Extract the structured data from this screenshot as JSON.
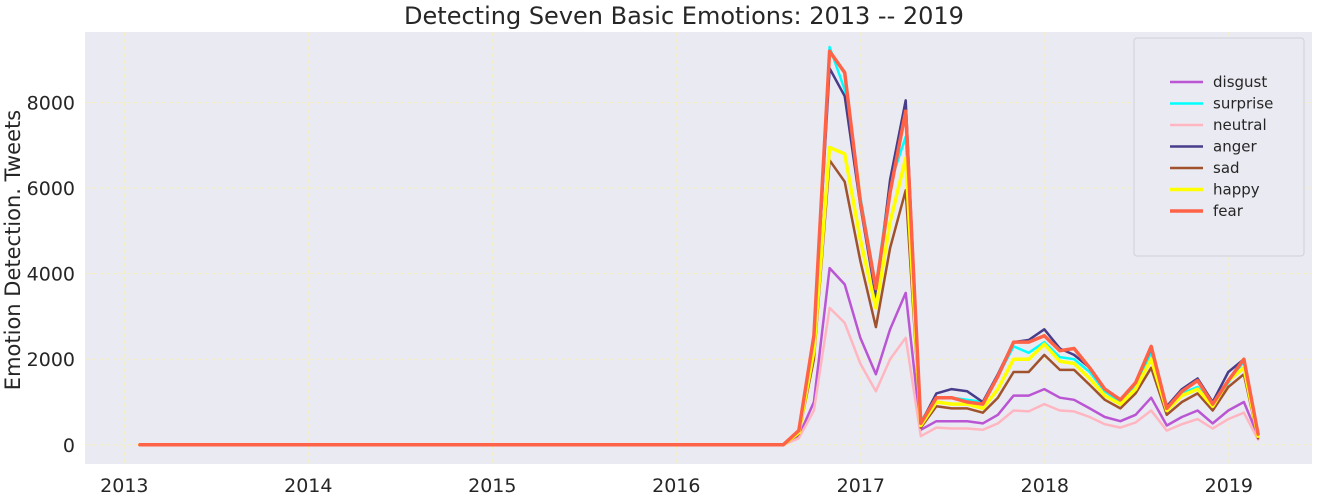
{
  "chart_data": {
    "type": "line",
    "title": "Detecting Seven Basic Emotions: 2013 -- 2019",
    "xlabel": "",
    "ylabel": "Emotion Detection. Tweets",
    "xlim": [
      "2012-10-15",
      "2019-06-15"
    ],
    "ylim": [
      -450,
      9650
    ],
    "x_ticks": [
      {
        "date": "2013-01-01",
        "label": "2013"
      },
      {
        "date": "2014-01-01",
        "label": "2014"
      },
      {
        "date": "2015-01-01",
        "label": "2015"
      },
      {
        "date": "2016-01-01",
        "label": "2016"
      },
      {
        "date": "2017-01-01",
        "label": "2017"
      },
      {
        "date": "2018-01-01",
        "label": "2018"
      },
      {
        "date": "2019-01-01",
        "label": "2019"
      }
    ],
    "y_ticks": [
      {
        "value": 0,
        "label": "0"
      },
      {
        "value": 2000,
        "label": "2000"
      },
      {
        "value": 4000,
        "label": "4000"
      },
      {
        "value": 6000,
        "label": "6000"
      },
      {
        "value": 8000,
        "label": "8000"
      }
    ],
    "grid": true,
    "legend": "upper right",
    "x": [
      "2013-02-01",
      "2016-07-31",
      "2016-08-31",
      "2016-09-30",
      "2016-10-31",
      "2016-11-30",
      "2016-12-31",
      "2017-01-31",
      "2017-02-28",
      "2017-03-31",
      "2017-04-30",
      "2017-05-31",
      "2017-06-30",
      "2017-07-31",
      "2017-08-31",
      "2017-09-30",
      "2017-10-31",
      "2017-11-30",
      "2017-12-31",
      "2018-01-31",
      "2018-02-28",
      "2018-03-31",
      "2018-04-30",
      "2018-05-31",
      "2018-06-30",
      "2018-07-31",
      "2018-08-31",
      "2018-09-30",
      "2018-10-31",
      "2018-11-30",
      "2018-12-31",
      "2019-01-31",
      "2019-02-28"
    ],
    "series": [
      {
        "name": "disgust",
        "color": "#ba55d3",
        "width": 2.5,
        "values": [
          0,
          0,
          200,
          1000,
          4130,
          3750,
          2500,
          1650,
          2700,
          3550,
          350,
          550,
          550,
          550,
          500,
          700,
          1150,
          1150,
          1300,
          1100,
          1050,
          850,
          650,
          550,
          700,
          1100,
          450,
          650,
          800,
          500,
          800,
          1000,
          200
        ]
      },
      {
        "name": "surprise",
        "color": "#00ffff",
        "width": 2.5,
        "values": [
          0,
          0,
          300,
          2400,
          9300,
          8300,
          5800,
          3700,
          6100,
          7200,
          550,
          1100,
          1100,
          1050,
          1000,
          1600,
          2300,
          2150,
          2400,
          2050,
          2000,
          1700,
          1250,
          1000,
          1400,
          2150,
          900,
          1200,
          1350,
          900,
          1450,
          1950,
          200
        ]
      },
      {
        "name": "neutral",
        "color": "#ffb6c1",
        "width": 2.5,
        "values": [
          0,
          0,
          150,
          800,
          3200,
          2850,
          1900,
          1250,
          2000,
          2500,
          200,
          400,
          380,
          380,
          350,
          500,
          800,
          780,
          950,
          800,
          780,
          650,
          480,
          400,
          520,
          800,
          330,
          480,
          600,
          380,
          600,
          750,
          120
        ]
      },
      {
        "name": "anger",
        "color": "#483d8b",
        "width": 2.5,
        "values": [
          0,
          0,
          300,
          2500,
          8800,
          8150,
          5600,
          3450,
          6200,
          8050,
          500,
          1200,
          1300,
          1250,
          1000,
          1650,
          2400,
          2450,
          2700,
          2250,
          2100,
          1800,
          1300,
          1050,
          1450,
          2250,
          900,
          1300,
          1550,
          1000,
          1700,
          2000,
          200
        ]
      },
      {
        "name": "sad",
        "color": "#a0522d",
        "width": 2.5,
        "values": [
          0,
          0,
          250,
          2000,
          6650,
          6150,
          4300,
          2750,
          4600,
          5950,
          400,
          900,
          850,
          850,
          750,
          1100,
          1700,
          1700,
          2100,
          1750,
          1750,
          1400,
          1050,
          850,
          1200,
          1800,
          700,
          1000,
          1200,
          800,
          1350,
          1650,
          150
        ]
      },
      {
        "name": "happy",
        "color": "#ffff00",
        "width": 3.5,
        "values": [
          0,
          0,
          280,
          2200,
          6950,
          6800,
          4800,
          3200,
          5200,
          6700,
          450,
          1000,
          950,
          950,
          850,
          1300,
          2000,
          2000,
          2350,
          1950,
          1900,
          1550,
          1150,
          950,
          1300,
          2000,
          800,
          1150,
          1300,
          900,
          1500,
          1800,
          200
        ]
      },
      {
        "name": "fear",
        "color": "#ff6347",
        "width": 3.5,
        "values": [
          0,
          0,
          330,
          2550,
          9200,
          8700,
          5700,
          3650,
          5900,
          7800,
          500,
          1100,
          1100,
          1000,
          950,
          1600,
          2400,
          2400,
          2550,
          2200,
          2250,
          1800,
          1300,
          1050,
          1450,
          2300,
          850,
          1250,
          1500,
          950,
          1500,
          2000,
          250
        ]
      }
    ]
  }
}
